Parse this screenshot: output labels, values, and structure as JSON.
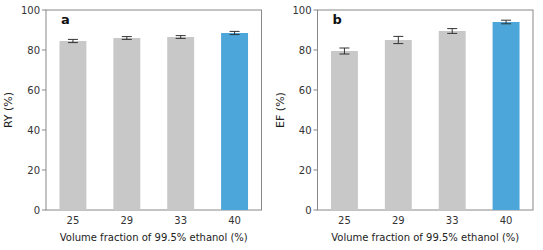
{
  "chart_data": [
    {
      "type": "bar",
      "annotations": [
        "a"
      ],
      "categories": [
        "25",
        "29",
        "33",
        "40"
      ],
      "values": [
        84.5,
        86.0,
        86.5,
        88.5
      ],
      "errors": [
        0.8,
        0.7,
        0.7,
        0.8
      ],
      "colors": [
        "#c8c8c8",
        "#c8c8c8",
        "#c8c8c8",
        "#4da6d9"
      ],
      "xlabel": "Volume fraction of 99.5% ethanol (%)",
      "ylabel": "RY (%)",
      "ylim": [
        0,
        100
      ],
      "yticks": [
        0,
        20,
        40,
        60,
        80,
        100
      ],
      "grid": false
    },
    {
      "type": "bar",
      "annotations": [
        "b"
      ],
      "categories": [
        "25",
        "29",
        "33",
        "40"
      ],
      "values": [
        79.5,
        85.0,
        89.5,
        94.0
      ],
      "errors": [
        1.5,
        1.8,
        1.2,
        0.9
      ],
      "colors": [
        "#c8c8c8",
        "#c8c8c8",
        "#c8c8c8",
        "#4da6d9"
      ],
      "xlabel": "Volume fraction of 99.5% ethanol (%)",
      "ylabel": "EF (%)",
      "ylim": [
        0,
        100
      ],
      "yticks": [
        0,
        20,
        40,
        60,
        80,
        100
      ],
      "grid": false
    }
  ]
}
